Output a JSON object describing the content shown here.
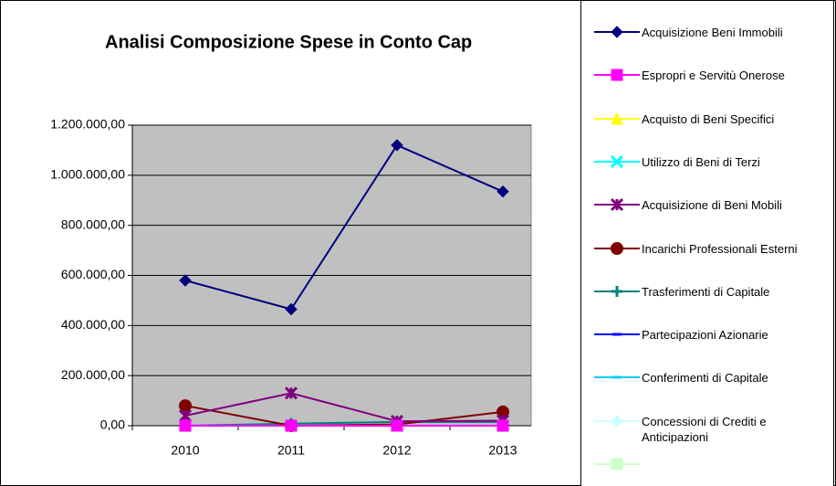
{
  "chart_data": {
    "type": "line",
    "title": "Analisi Composizione Spese in Conto Cap",
    "categories": [
      "2010",
      "2011",
      "2012",
      "2013"
    ],
    "series": [
      {
        "name": "Acquisizione Beni Immobili",
        "color": "#000080",
        "marker": "diamond",
        "values": [
          580000,
          465000,
          1120000,
          935000
        ]
      },
      {
        "name": "Espropri e Servitù Onerose",
        "color": "#ff00ff",
        "marker": "square",
        "values": [
          0,
          0,
          0,
          0
        ]
      },
      {
        "name": "Acquisto di Beni Specifici",
        "color": "#ffff00",
        "marker": "triangle",
        "values": [
          0,
          0,
          0,
          0
        ]
      },
      {
        "name": "Utilizzo di Beni di Terzi",
        "color": "#00ffff",
        "marker": "x",
        "values": [
          0,
          0,
          0,
          0
        ]
      },
      {
        "name": "Acquisizione di Beni Mobili",
        "color": "#800080",
        "marker": "star",
        "values": [
          40000,
          130000,
          18000,
          20000
        ]
      },
      {
        "name": "Incarichi Professionali Esterni",
        "color": "#800000",
        "marker": "circle",
        "values": [
          80000,
          0,
          5000,
          55000
        ]
      },
      {
        "name": "Trasferimenti di Capitale",
        "color": "#008080",
        "marker": "plus",
        "values": [
          0,
          8000,
          15000,
          15000
        ]
      },
      {
        "name": "Partecipazioni Azionarie",
        "color": "#0000ff",
        "marker": "dash",
        "values": [
          0,
          0,
          0,
          0
        ]
      },
      {
        "name": "Conferimenti di Capitale",
        "color": "#00ccff",
        "marker": "dash",
        "values": [
          0,
          0,
          0,
          0
        ]
      },
      {
        "name": "Concessioni di Crediti e Anticipazioni",
        "color": "#ccffff",
        "marker": "diamond",
        "values": [
          0,
          0,
          0,
          0
        ]
      },
      {
        "color": "#ccffcc",
        "marker": "square",
        "values": [
          0,
          0,
          0,
          0
        ]
      }
    ],
    "ylim": [
      0,
      1200000
    ],
    "yticks": [
      {
        "value": 0,
        "label": "0,00"
      },
      {
        "value": 200000,
        "label": "200.000,00"
      },
      {
        "value": 400000,
        "label": "400.000,00"
      },
      {
        "value": 600000,
        "label": "600.000,00"
      },
      {
        "value": 800000,
        "label": "800.000,00"
      },
      {
        "value": 1000000,
        "label": "1.000.000,00"
      },
      {
        "value": 1200000,
        "label": "1.200.000,00"
      }
    ],
    "grid": true,
    "legend": "right"
  }
}
